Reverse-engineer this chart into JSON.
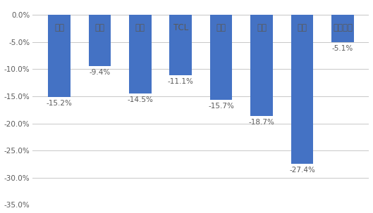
{
  "categories": [
    "小米",
    "海信",
    "创维",
    "TCL",
    "海尔",
    "康佳",
    "长虹",
    "外资品牌"
  ],
  "values": [
    -15.2,
    -9.4,
    -14.5,
    -11.1,
    -15.7,
    -18.7,
    -27.4,
    -5.1
  ],
  "bar_color": "#4472C4",
  "ylim": [
    -35.0,
    2.0
  ],
  "yticks": [
    0.0,
    -5.0,
    -10.0,
    -15.0,
    -20.0,
    -25.0,
    -30.0,
    -35.0
  ],
  "background_color": "#FFFFFF",
  "grid_color": "#C8C8C8",
  "text_color": "#595959",
  "label_color": "#595959",
  "figsize": [
    5.29,
    3.03
  ],
  "dpi": 100
}
